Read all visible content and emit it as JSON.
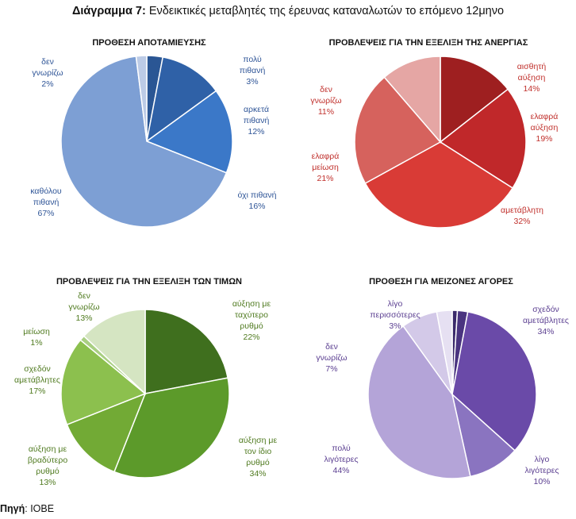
{
  "header": {
    "title_prefix": "Διάγραμμα 7:",
    "title_text": " Ενδεικτικές μεταβλητές της έρευνας καταναλωτών το επόμενο 12μηνο"
  },
  "footer": {
    "source_label": "Πηγή",
    "source_text": ": ΙΟΒΕ"
  },
  "chart_data": [
    {
      "type": "pie",
      "title": "ΠΡΟΘΕΣΗ ΑΠΟΤΑΜΙΕΥΣΗΣ",
      "start_angle_deg": 0,
      "label_color": "#2f5597",
      "slices": [
        {
          "lines": [
            "πολύ",
            "πιθανή",
            "3%"
          ],
          "value": 3,
          "color": "#2a5694"
        },
        {
          "lines": [
            "αρκετά",
            "πιθανή",
            "12%"
          ],
          "value": 12,
          "color": "#2f61a7"
        },
        {
          "lines": [
            "όχι πιθανή",
            "16%"
          ],
          "value": 16,
          "color": "#3b78c8"
        },
        {
          "lines": [
            "καθόλου",
            "πιθανή",
            "67%"
          ],
          "value": 67,
          "color": "#7d9fd4"
        },
        {
          "lines": [
            "δεν",
            "γνωρίζω",
            "2%"
          ],
          "value": 2,
          "color": "#bccbe6"
        }
      ]
    },
    {
      "type": "pie",
      "title": "ΠΡΟΒΛΕΨΕΙΣ ΓΙΑ ΤΗΝ ΕΞΕΛΙΞΗ ΤΗΣ ΑΝΕΡΓΙΑΣ",
      "start_angle_deg": 0,
      "label_color": "#c0302c",
      "slices": [
        {
          "lines": [
            "αισθητή",
            "αύξηση",
            "14%"
          ],
          "value": 14,
          "color": "#9e1f20"
        },
        {
          "lines": [
            "ελαφρά",
            "αύξηση",
            "19%"
          ],
          "value": 19,
          "color": "#c0282a"
        },
        {
          "lines": [
            "αμετάβλητη",
            "32%"
          ],
          "value": 32,
          "color": "#d93b36"
        },
        {
          "lines": [
            "ελαφρά",
            "μείωση",
            "21%"
          ],
          "value": 21,
          "color": "#d6625d"
        },
        {
          "lines": [
            "δεν",
            "γνωρίζω",
            "11%"
          ],
          "value": 11,
          "color": "#e5a6a4"
        }
      ]
    },
    {
      "type": "pie",
      "title": "ΠΡΟΒΛΕΨΕΙΣ ΓΙΑ ΤΗΝ ΕΞΕΛΙΞΗ ΤΩΝ ΤΙΜΩΝ",
      "start_angle_deg": 0,
      "label_color": "#4f7a1f",
      "slices": [
        {
          "lines": [
            "αύξηση με",
            "ταχύτερο",
            "ρυθμό",
            "22%"
          ],
          "value": 22,
          "color": "#3f6f1e"
        },
        {
          "lines": [
            "αύξηση με",
            "τον ίδιο",
            "ρυθμό",
            "34%"
          ],
          "value": 34,
          "color": "#5c9a2a"
        },
        {
          "lines": [
            "αύξηση με",
            "βραδύτερο",
            "ρυθμό",
            "13%"
          ],
          "value": 13,
          "color": "#72aa35"
        },
        {
          "lines": [
            "σχεδόν",
            "αμετάβλητες",
            "17%"
          ],
          "value": 17,
          "color": "#8cc04e"
        },
        {
          "lines": [
            "μείωση",
            "1%"
          ],
          "value": 1,
          "color": "#a9cf82"
        },
        {
          "lines": [
            "δεν",
            "γνωρίζω",
            "13%"
          ],
          "value": 13,
          "color": "#d5e5c2"
        }
      ]
    },
    {
      "type": "pie",
      "title": "ΠΡΟΘΕΣΗ ΓΙΑ ΜΕΙΖΟΝΕΣ ΑΓΟΡΕΣ",
      "start_angle_deg": 0,
      "label_color": "#5b3f91",
      "slices": [
        {
          "lines": [
            "",
            "",
            ""
          ],
          "value": 1,
          "color": "#3b2a6b"
        },
        {
          "lines": [
            "",
            "",
            ""
          ],
          "value": 2,
          "color": "#4a3480"
        },
        {
          "lines": [
            "σχεδόν",
            "αμετάβλητες",
            "34%"
          ],
          "value": 34,
          "color": "#6a4aa8"
        },
        {
          "lines": [
            "λίγο",
            "λιγότερες",
            "10%"
          ],
          "value": 10,
          "color": "#8a74c0"
        },
        {
          "lines": [
            "πολύ",
            "λιγότερες",
            "44%"
          ],
          "value": 44,
          "color": "#b4a4d8"
        },
        {
          "lines": [
            "δεν",
            "γνωρίζω",
            "7%"
          ],
          "value": 7,
          "color": "#d3c9e8"
        },
        {
          "lines": [
            "λίγο",
            "περισσότερες",
            "3%"
          ],
          "value": 3,
          "color": "#e6e0f2"
        }
      ]
    }
  ]
}
